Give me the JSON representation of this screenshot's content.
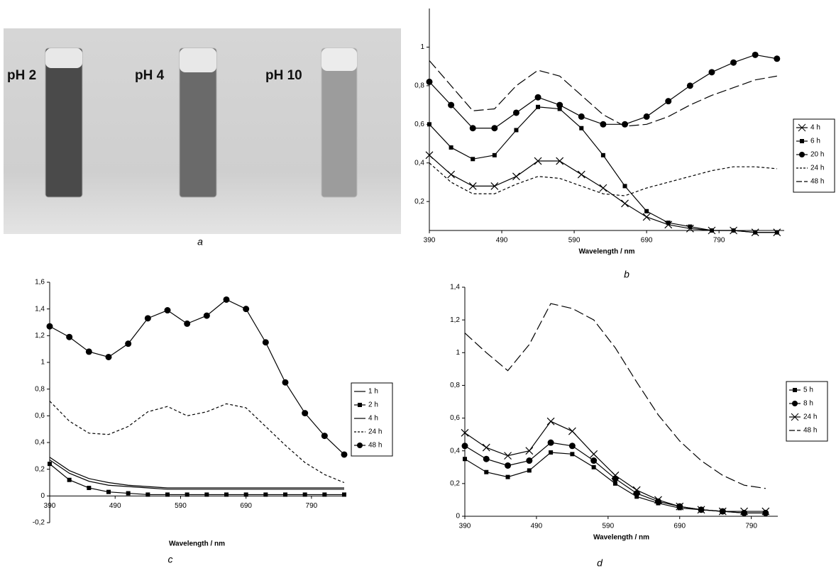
{
  "photo": {
    "labels": [
      "pH 2",
      "pH 4",
      "pH 10"
    ],
    "caption": "a"
  },
  "chart_data": [
    {
      "type": "line",
      "caption": "b",
      "x_label": "Wavelength / nm",
      "x": [
        390,
        420,
        450,
        480,
        510,
        540,
        570,
        600,
        630,
        660,
        690,
        720,
        750,
        780,
        810,
        840,
        870
      ],
      "xlim": [
        390,
        880
      ],
      "xticks": [
        390,
        490,
        590,
        690,
        790
      ],
      "ylim": [
        0.05,
        1.2
      ],
      "yticks": [
        {
          "value": 0.2,
          "label": "0,2"
        },
        {
          "value": 0.4,
          "label": "0,4"
        },
        {
          "value": 0.6,
          "label": "0,6"
        },
        {
          "value": 0.8,
          "label": "0,8"
        },
        1
      ],
      "series": [
        {
          "name": "4 h",
          "color": "#000000",
          "marker": "x",
          "dash": null,
          "values": [
            0.44,
            0.34,
            0.28,
            0.28,
            0.33,
            0.41,
            0.41,
            0.34,
            0.27,
            0.19,
            0.12,
            0.08,
            0.06,
            0.05,
            0.05,
            0.04,
            0.04
          ]
        },
        {
          "name": "6 h",
          "color": "#000000",
          "marker": "square",
          "dash": null,
          "values": [
            0.6,
            0.48,
            0.42,
            0.44,
            0.57,
            0.69,
            0.68,
            0.58,
            0.44,
            0.28,
            0.15,
            0.09,
            0.07,
            0.05,
            0.05,
            0.04,
            0.04
          ]
        },
        {
          "name": "20 h",
          "color": "#000000",
          "marker": "circle",
          "dash": null,
          "values": [
            0.82,
            0.7,
            0.58,
            0.58,
            0.66,
            0.74,
            0.7,
            0.64,
            0.6,
            0.6,
            0.64,
            0.72,
            0.8,
            0.87,
            0.92,
            0.96,
            0.94
          ]
        },
        {
          "name": "24 h",
          "color": "#000000",
          "marker": null,
          "dash": "short",
          "values": [
            0.4,
            0.3,
            0.24,
            0.24,
            0.29,
            0.33,
            0.32,
            0.28,
            0.24,
            0.23,
            0.27,
            0.3,
            0.33,
            0.36,
            0.38,
            0.38,
            0.37
          ]
        },
        {
          "name": "48 h",
          "color": "#000000",
          "marker": null,
          "dash": "long",
          "values": [
            0.93,
            0.8,
            0.67,
            0.68,
            0.8,
            0.88,
            0.85,
            0.75,
            0.65,
            0.59,
            0.6,
            0.64,
            0.7,
            0.75,
            0.79,
            0.83,
            0.85
          ]
        }
      ]
    },
    {
      "type": "line",
      "caption": "c",
      "x_label": "Wavelength / nm",
      "x": [
        390,
        420,
        450,
        480,
        510,
        540,
        570,
        600,
        630,
        660,
        690,
        720,
        750,
        780,
        810,
        840
      ],
      "xlim": [
        390,
        840
      ],
      "xticks": [
        390,
        490,
        590,
        690,
        790
      ],
      "ylim": [
        -0.2,
        1.6
      ],
      "yticks": [
        {
          "value": -0.2,
          "label": "-0,2"
        },
        0,
        {
          "value": 0.2,
          "label": "0,2"
        },
        {
          "value": 0.4,
          "label": "0,4"
        },
        {
          "value": 0.6,
          "label": "0,6"
        },
        {
          "value": 0.8,
          "label": "0,8"
        },
        1,
        {
          "value": 1.2,
          "label": "1,2"
        },
        {
          "value": 1.4,
          "label": "1,4"
        },
        {
          "value": 1.6,
          "label": "1,6"
        }
      ],
      "series": [
        {
          "name": "1 h",
          "color": "#000000",
          "marker": null,
          "dash": null,
          "values": [
            0.27,
            0.17,
            0.11,
            0.08,
            0.07,
            0.06,
            0.05,
            0.05,
            0.05,
            0.05,
            0.05,
            0.05,
            0.05,
            0.05,
            0.05,
            0.05
          ]
        },
        {
          "name": "2 h",
          "color": "#000000",
          "marker": "square",
          "dash": null,
          "values": [
            0.24,
            0.12,
            0.06,
            0.03,
            0.02,
            0.01,
            0.01,
            0.01,
            0.01,
            0.01,
            0.01,
            0.01,
            0.01,
            0.01,
            0.01,
            0.01
          ]
        },
        {
          "name": "4 h",
          "color": "#000000",
          "marker": null,
          "dash": null,
          "values": [
            0.29,
            0.19,
            0.13,
            0.1,
            0.08,
            0.07,
            0.06,
            0.06,
            0.06,
            0.06,
            0.06,
            0.06,
            0.06,
            0.06,
            0.06,
            0.06
          ]
        },
        {
          "name": "24 h",
          "color": "#000000",
          "marker": null,
          "dash": "short",
          "values": [
            0.71,
            0.56,
            0.47,
            0.46,
            0.52,
            0.63,
            0.67,
            0.6,
            0.63,
            0.69,
            0.66,
            0.52,
            0.38,
            0.25,
            0.16,
            0.1
          ]
        },
        {
          "name": "48 h",
          "color": "#000000",
          "marker": "circle",
          "dash": null,
          "values": [
            1.27,
            1.19,
            1.08,
            1.04,
            1.14,
            1.33,
            1.39,
            1.29,
            1.35,
            1.47,
            1.4,
            1.15,
            0.85,
            0.62,
            0.45,
            0.31
          ]
        }
      ]
    },
    {
      "type": "line",
      "caption": "d",
      "x_label": "Wavelength / nm",
      "x": [
        390,
        420,
        450,
        480,
        510,
        540,
        570,
        600,
        630,
        660,
        690,
        720,
        750,
        780,
        810
      ],
      "xlim": [
        390,
        827
      ],
      "xticks": [
        390,
        490,
        590,
        690,
        790
      ],
      "ylim": [
        0,
        1.4
      ],
      "yticks": [
        0,
        {
          "value": 0.2,
          "label": "0,2"
        },
        {
          "value": 0.4,
          "label": "0,4"
        },
        {
          "value": 0.6,
          "label": "0,6"
        },
        {
          "value": 0.8,
          "label": "0,8"
        },
        1,
        {
          "value": 1.2,
          "label": "1,2"
        },
        {
          "value": 1.4,
          "label": "1,4"
        }
      ],
      "series": [
        {
          "name": "5 h",
          "color": "#000000",
          "marker": "square",
          "dash": null,
          "values": [
            0.35,
            0.27,
            0.24,
            0.28,
            0.39,
            0.38,
            0.3,
            0.2,
            0.12,
            0.08,
            0.05,
            0.04,
            0.03,
            0.02,
            0.02
          ]
        },
        {
          "name": "8 h",
          "color": "#000000",
          "marker": "circle",
          "dash": null,
          "values": [
            0.43,
            0.35,
            0.31,
            0.34,
            0.45,
            0.43,
            0.34,
            0.23,
            0.14,
            0.09,
            0.06,
            0.04,
            0.03,
            0.02,
            0.02
          ]
        },
        {
          "name": "24 h",
          "color": "#000000",
          "marker": "x",
          "dash": null,
          "values": [
            0.51,
            0.42,
            0.37,
            0.4,
            0.58,
            0.52,
            0.38,
            0.25,
            0.16,
            0.1,
            0.06,
            0.04,
            0.03,
            0.03,
            0.03
          ]
        },
        {
          "name": "48 h",
          "color": "#000000",
          "marker": null,
          "dash": "long",
          "values": [
            1.12,
            1.0,
            0.89,
            1.05,
            1.3,
            1.27,
            1.2,
            1.03,
            0.82,
            0.62,
            0.46,
            0.34,
            0.25,
            0.19,
            0.17
          ]
        }
      ]
    }
  ]
}
